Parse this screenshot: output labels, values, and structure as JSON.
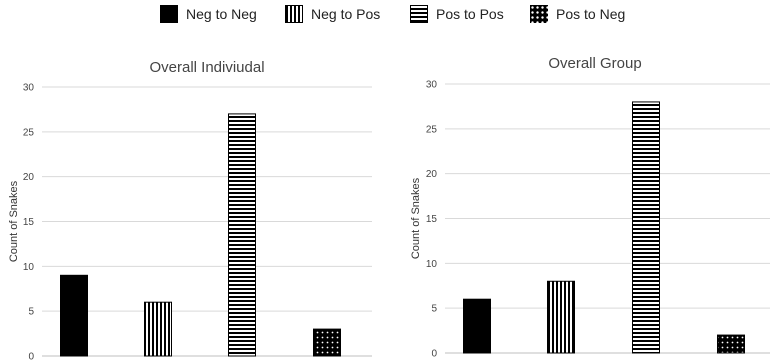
{
  "legend": {
    "items": [
      {
        "label": "Neg to Neg",
        "pattern": "solid"
      },
      {
        "label": "Neg to Pos",
        "pattern": "vertical-stripes"
      },
      {
        "label": "Pos to Pos",
        "pattern": "horizontal-stripes"
      },
      {
        "label": "Pos to Neg",
        "pattern": "dots"
      }
    ]
  },
  "colors": {
    "bar": "#000000",
    "grid": "#d9d9d9",
    "axis": "#bfbfbf"
  },
  "chart_data": [
    {
      "type": "bar",
      "title": "Overall Indiviudal",
      "ylabel": "Count of Snakes",
      "xlabel": "",
      "categories": [
        "Neg to Neg",
        "Neg to Pos",
        "Pos to Pos",
        "Pos to Neg"
      ],
      "values": [
        9,
        6,
        27,
        3
      ],
      "ylim": [
        0,
        30
      ],
      "yticks": [
        0,
        5,
        10,
        15,
        20,
        25,
        30
      ],
      "grid": true
    },
    {
      "type": "bar",
      "title": "Overall Group",
      "ylabel": "Count of Snakes",
      "xlabel": "",
      "categories": [
        "Neg to Neg",
        "Neg to Pos",
        "Pos to Pos",
        "Pos to Neg"
      ],
      "values": [
        6,
        8,
        28,
        2
      ],
      "ylim": [
        0,
        30
      ],
      "yticks": [
        0,
        5,
        10,
        15,
        20,
        25,
        30
      ],
      "grid": true
    }
  ]
}
